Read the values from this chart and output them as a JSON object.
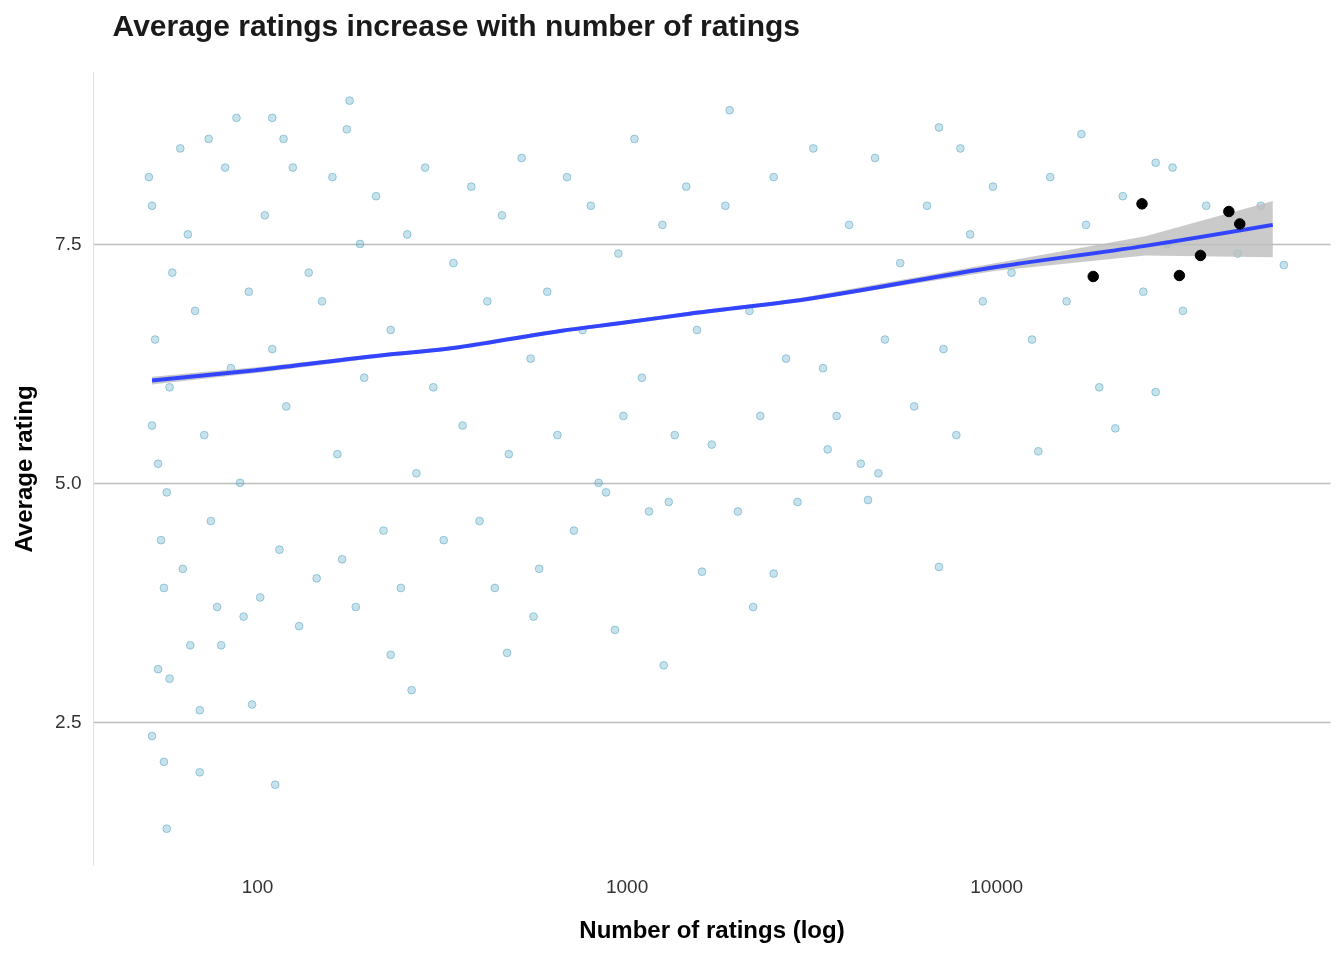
{
  "chart_data": {
    "type": "scatter",
    "title": "Average ratings increase with number of ratings",
    "xlabel": "Number of ratings (log)",
    "ylabel": "Average rating",
    "xlim": [
      36,
      80000
    ],
    "ylim": [
      1.0,
      9.3
    ],
    "xticks": [
      100,
      1000,
      10000
    ],
    "yticks": [
      2.5,
      {
        "value": 5,
        "label": "5.0"
      },
      7.5
    ],
    "log": "x",
    "grid": "y",
    "series": [
      {
        "marker": "circle",
        "color": "#4a9fc0",
        "x": [
          52,
          53,
          54,
          55,
          51,
          56,
          58,
          59,
          52,
          57,
          62,
          65,
          68,
          72,
          75,
          78,
          82,
          85,
          90,
          95,
          66,
          63,
          80,
          92,
          74,
          105,
          110,
          115,
          120,
          125,
          130,
          138,
          145,
          150,
          160,
          165,
          170,
          175,
          185,
          190,
          195,
          102,
          118,
          210,
          220,
          230,
          245,
          255,
          270,
          285,
          300,
          320,
          340,
          360,
          380,
          400,
          420,
          440,
          460,
          480,
          230,
          520,
          550,
          580,
          610,
          650,
          690,
          720,
          760,
          800,
          840,
          880,
          950,
          980,
          560,
          1050,
          1100,
          1150,
          1250,
          1350,
          1450,
          1550,
          1700,
          1850,
          2000,
          2150,
          2300,
          2500,
          2700,
          2900,
          1300,
          3200,
          3400,
          3700,
          4000,
          4300,
          4700,
          5000,
          5500,
          6000,
          6500,
          7200,
          7800,
          8500,
          9200,
          9800,
          4800,
          11000,
          12500,
          14000,
          15500,
          17500,
          19000,
          22000,
          25000,
          29000,
          32000,
          37000,
          45000,
          52000,
          30000,
          52,
          57,
          56,
          70,
          70,
          97,
          112,
          58,
          54,
          262,
          1260,
          930,
          475,
          2200,
          1600,
          2500,
          7000,
          178,
          110,
          88,
          1900,
          7000,
          17000,
          8000,
          27000,
          60000,
          21000,
          27000,
          13000,
          4500,
          3500
        ],
        "values": [
          7.9,
          6.5,
          5.2,
          4.4,
          8.2,
          3.9,
          6.0,
          7.2,
          5.6,
          4.9,
          8.5,
          7.6,
          6.8,
          5.5,
          4.6,
          3.7,
          8.3,
          6.2,
          5.0,
          7.0,
          3.3,
          4.1,
          3.3,
          3.6,
          8.6,
          7.8,
          6.4,
          4.3,
          5.8,
          8.3,
          3.5,
          7.2,
          4.0,
          6.9,
          8.2,
          5.3,
          4.2,
          8.7,
          3.7,
          7.5,
          6.1,
          3.8,
          8.6,
          8.0,
          4.5,
          6.6,
          3.9,
          7.6,
          5.1,
          8.3,
          6.0,
          4.4,
          7.3,
          5.6,
          8.1,
          4.6,
          6.9,
          3.9,
          7.8,
          5.3,
          3.2,
          8.4,
          6.3,
          4.1,
          7.0,
          5.5,
          8.2,
          4.5,
          6.6,
          7.9,
          5.0,
          4.9,
          7.4,
          5.7,
          3.6,
          8.6,
          6.1,
          4.7,
          7.7,
          5.5,
          8.1,
          6.6,
          5.4,
          7.9,
          4.7,
          6.8,
          5.7,
          8.2,
          6.3,
          4.8,
          4.8,
          8.5,
          6.2,
          5.7,
          7.7,
          5.2,
          8.4,
          6.5,
          7.3,
          5.8,
          7.9,
          6.4,
          5.5,
          7.6,
          6.9,
          8.1,
          5.1,
          7.2,
          6.5,
          8.2,
          6.9,
          7.7,
          6.0,
          8.0,
          7.0,
          7.5,
          6.8,
          7.9,
          7.4,
          7.9,
          8.3,
          2.35,
          1.38,
          2.08,
          1.97,
          2.62,
          2.68,
          1.84,
          2.95,
          3.05,
          2.83,
          3.09,
          3.46,
          3.22,
          3.7,
          4.07,
          4.05,
          4.12,
          9.0,
          8.82,
          8.82,
          8.9,
          8.72,
          8.65,
          8.5,
          8.35,
          7.28,
          5.57,
          5.95,
          5.33,
          4.82,
          5.35
        ]
      },
      {
        "type": "line",
        "marker": "none",
        "color": "#3344ff",
        "x": [
          52,
          100,
          224,
          323,
          662,
          1000,
          1480,
          2790,
          10000,
          25300,
          56000
        ],
        "values": [
          6.07,
          6.18,
          6.34,
          6.4,
          6.59,
          6.68,
          6.77,
          6.9,
          7.26,
          7.48,
          7.7
        ],
        "lower": [
          6.03,
          6.15,
          6.32,
          6.38,
          6.57,
          6.66,
          6.75,
          6.88,
          7.22,
          7.38,
          7.36
        ],
        "upper": [
          6.11,
          6.21,
          6.36,
          6.42,
          6.61,
          6.7,
          6.79,
          6.92,
          7.3,
          7.58,
          7.95
        ]
      },
      {
        "marker": "circle",
        "color": "#000000",
        "x": [
          24800,
          42600,
          45600,
          35700,
          31300,
          18300
        ],
        "values": [
          7.92,
          7.84,
          7.71,
          7.38,
          7.17,
          7.16
        ]
      }
    ]
  }
}
